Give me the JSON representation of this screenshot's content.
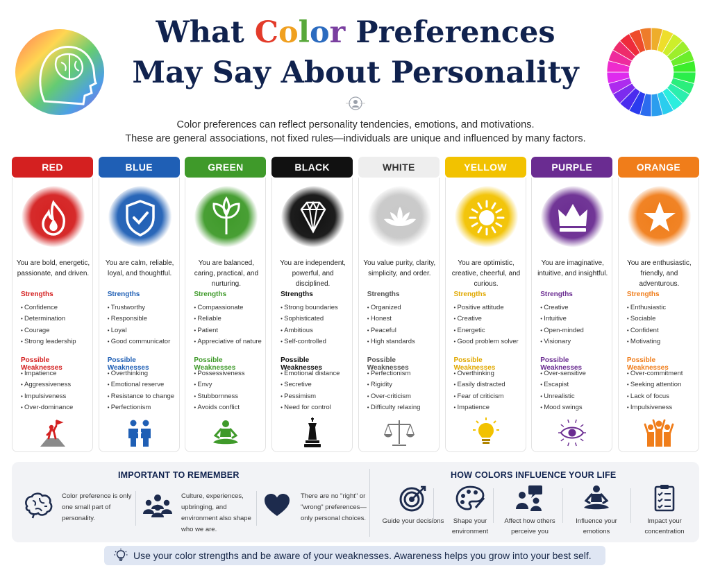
{
  "title": {
    "line1_parts": [
      {
        "text": "What ",
        "color": "#10224e"
      },
      {
        "text": "C",
        "color": "#e33b2a"
      },
      {
        "text": "o",
        "color": "#f0a020"
      },
      {
        "text": "l",
        "color": "#58a83a"
      },
      {
        "text": "o",
        "color": "#2b6bbf"
      },
      {
        "text": "r",
        "color": "#7a3fa0"
      },
      {
        "text": " Preferences",
        "color": "#10224e"
      }
    ],
    "line2": "May Say About Personality"
  },
  "subtitle": {
    "line1": "Color preferences can reflect personality tendencies, emotions, and motivations.",
    "line2": "These are general associations, not fixed rules—individuals are unique and influenced by many factors."
  },
  "strengths_label": "Strengths",
  "weaknesses_label": "Possible Weaknesses",
  "cards": [
    {
      "name": "RED",
      "color": "#d42020",
      "text_color": "#d42020",
      "label_color": "#d42020",
      "icon": "fire-icon",
      "bottom_icon": "summit-flag-icon",
      "blurb": "You are bold, energetic, passionate, and driven.",
      "strengths": [
        "Confidence",
        "Determination",
        "Courage",
        "Strong leadership"
      ],
      "weaknesses": [
        "Impatience",
        "Aggressiveness",
        "Impulsiveness",
        "Over-dominance"
      ]
    },
    {
      "name": "BLUE",
      "color": "#1f5fb5",
      "text_color": "#1f5fb5",
      "label_color": "#1f5fb5",
      "icon": "shield-check-icon",
      "bottom_icon": "handshake-people-icon",
      "blurb": "You are calm, reliable, loyal, and thoughtful.",
      "strengths": [
        "Trustworthy",
        "Responsible",
        "Loyal",
        "Good communicator"
      ],
      "weaknesses": [
        "Overthinking",
        "Emotional reserve",
        "Resistance to change",
        "Perfectionism"
      ]
    },
    {
      "name": "GREEN",
      "color": "#3f9a2a",
      "text_color": "#3f9a2a",
      "label_color": "#3f9a2a",
      "icon": "leaves-icon",
      "bottom_icon": "meditation-icon",
      "blurb": "You are balanced, caring, practical, and nurturing.",
      "strengths": [
        "Compassionate",
        "Reliable",
        "Patient",
        "Appreciative of nature"
      ],
      "weaknesses": [
        "Possessiveness",
        "Envy",
        "Stubbornness",
        "Avoids conflict"
      ]
    },
    {
      "name": "BLACK",
      "color": "#111111",
      "text_color": "#111111",
      "label_color": "#111111",
      "icon": "diamond-icon",
      "bottom_icon": "chess-king-icon",
      "blurb": "You are independent, powerful, and disciplined.",
      "strengths": [
        "Strong boundaries",
        "Sophisticated",
        "Ambitious",
        "Self-controlled"
      ],
      "weaknesses": [
        "Emotional distance",
        "Secretive",
        "Pessimism",
        "Need for control"
      ]
    },
    {
      "name": "WHITE",
      "color": "#eeeeee",
      "text_color": "#333333",
      "label_color": "#555555",
      "icon": "lotus-icon",
      "bottom_icon": "balance-scale-icon",
      "blurb": "You value purity, clarity, simplicity, and order.",
      "strengths": [
        "Organized",
        "Honest",
        "Peaceful",
        "High standards"
      ],
      "weaknesses": [
        "Perfectionism",
        "Rigidity",
        "Over-criticism",
        "Difficulty relaxing"
      ]
    },
    {
      "name": "YELLOW",
      "color": "#f2c200",
      "text_color": "#1a1a1a",
      "label_color": "#e0a800",
      "icon": "sun-icon",
      "bottom_icon": "lightbulb-icon",
      "blurb": "You are optimistic, creative, cheerful, and curious.",
      "strengths": [
        "Positive attitude",
        "Creative",
        "Energetic",
        "Good problem solver"
      ],
      "weaknesses": [
        "Overthinking",
        "Easily distracted",
        "Fear of criticism",
        "Impatience"
      ]
    },
    {
      "name": "PURPLE",
      "color": "#6a2c91",
      "text_color": "#6a2c91",
      "label_color": "#6a2c91",
      "icon": "crown-icon",
      "bottom_icon": "eye-icon",
      "blurb": "You are imaginative, intuitive, and insightful.",
      "strengths": [
        "Creative",
        "Intuitive",
        "Open-minded",
        "Visionary"
      ],
      "weaknesses": [
        "Over-sensitive",
        "Escapist",
        "Unrealistic",
        "Mood swings"
      ]
    },
    {
      "name": "ORANGE",
      "color": "#f07d1a",
      "text_color": "#f07d1a",
      "label_color": "#f07d1a",
      "icon": "star-icon",
      "bottom_icon": "cheering-group-icon",
      "blurb": "You are enthusiastic, friendly, and adventurous.",
      "strengths": [
        "Enthusiastic",
        "Sociable",
        "Confident",
        "Motivating"
      ],
      "weaknesses": [
        "Over-commitment",
        "Seeking attention",
        "Lack of focus",
        "Impulsiveness"
      ]
    }
  ],
  "remember": {
    "title": "IMPORTANT TO REMEMBER",
    "items": [
      {
        "icon": "brain-icon",
        "text": "Color preference is only one small part of personality."
      },
      {
        "icon": "people-group-icon",
        "text": "Culture, experiences, upbringing, and environment also shape who we are."
      },
      {
        "icon": "heart-icon",
        "text": "There are no \"right\" or \"wrong\" preferences—only personal choices."
      }
    ]
  },
  "influence": {
    "title": "HOW COLORS INFLUENCE YOUR LIFE",
    "items": [
      {
        "icon": "target-icon",
        "text": "Guide your decisions"
      },
      {
        "icon": "palette-icon",
        "text": "Shape your environment"
      },
      {
        "icon": "conversation-icon",
        "text": "Affect how others perceive you"
      },
      {
        "icon": "meditation-icon",
        "text": "Influence your emotions"
      },
      {
        "icon": "checklist-icon",
        "text": "Impact your concentration"
      }
    ]
  },
  "tip": {
    "icon": "lightbulb-icon",
    "text": "Use your color strengths and be aware of your weaknesses. Awareness helps you grow into your best self."
  },
  "decor": {
    "left_icon": "rainbow-head-brain-icon",
    "right_icon": "color-wheel-icon",
    "center_icon": "person-icon"
  }
}
